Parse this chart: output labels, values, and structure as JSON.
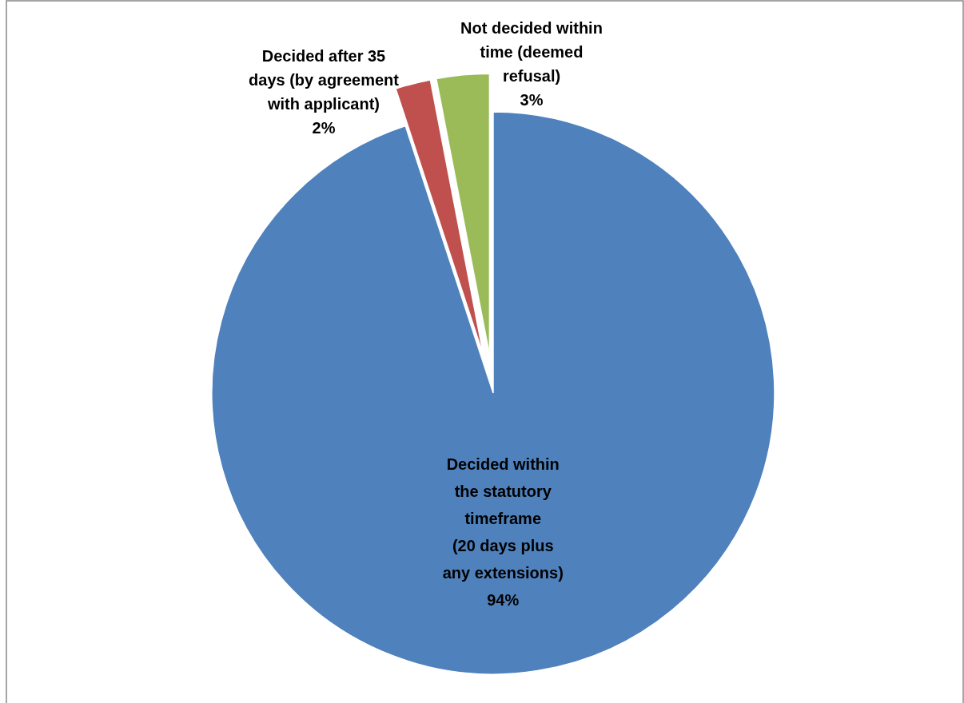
{
  "chart_data": {
    "type": "pie",
    "categories": [
      "Decided within\nthe statutory\ntimeframe\n(20 days plus\nany extensions)",
      "Decided after 35\ndays (by agreement\nwith applicant)",
      "Not decided within\ntime (deemed\nrefusal)"
    ],
    "values": [
      94,
      2,
      3
    ],
    "value_labels": [
      "94%",
      "2%",
      "3%"
    ],
    "colors": [
      "#4f81bd",
      "#c0504d",
      "#9bbb59"
    ]
  }
}
